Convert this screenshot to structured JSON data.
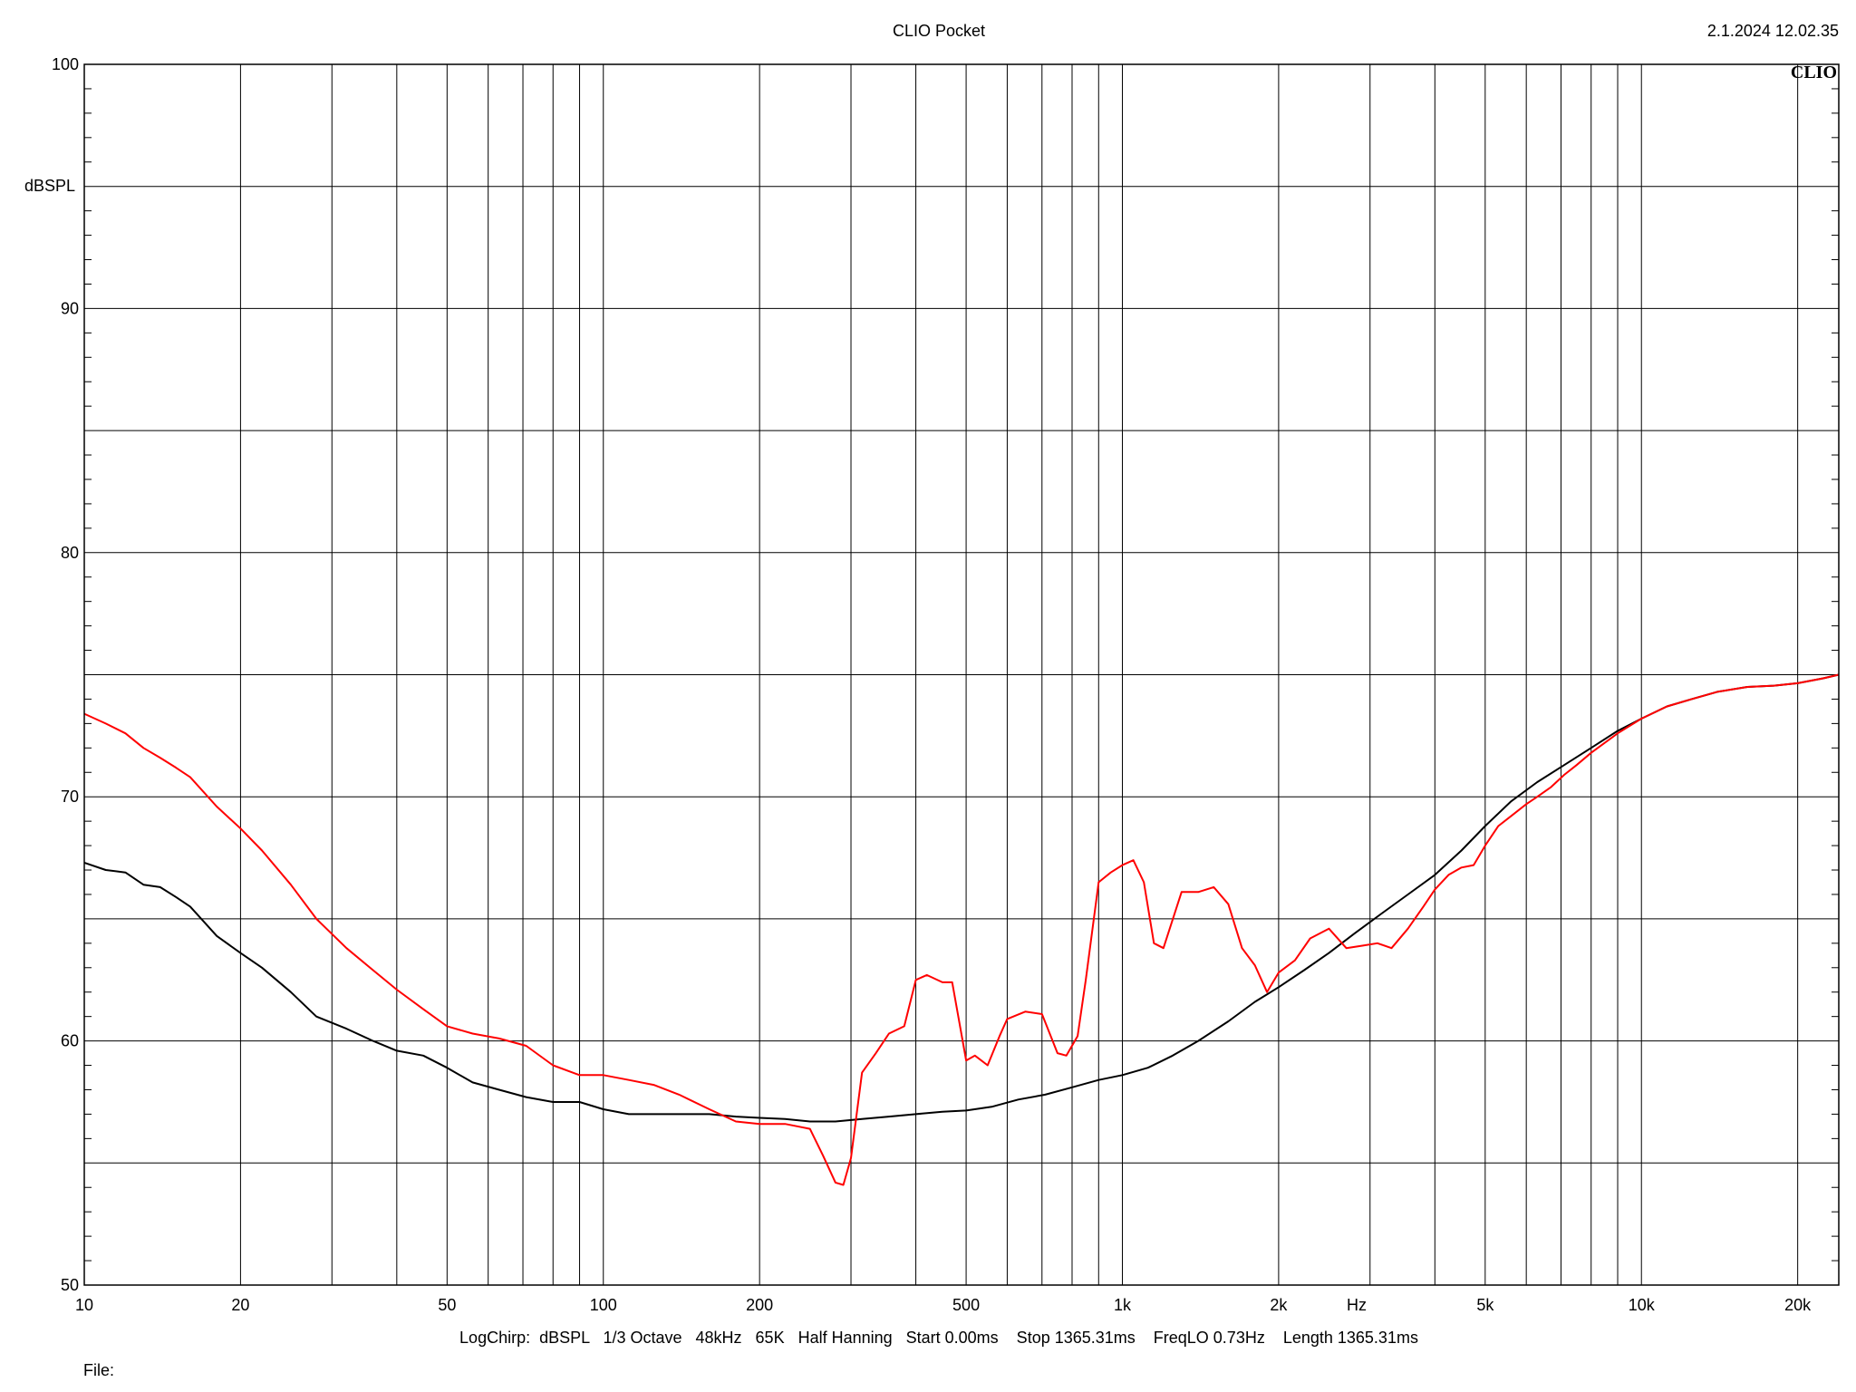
{
  "header": {
    "title": "CLIO Pocket",
    "timestamp": "2.1.2024 12.02.35",
    "logo": "CLIO"
  },
  "footer": {
    "params": "LogChirp:  dBSPL   1/3 Octave   48kHz   65K   Half Hanning   Start 0.00ms    Stop 1365.31ms    FreqLO 0.73Hz    Length 1365.31ms",
    "file_label": "File:"
  },
  "colors": {
    "series_black": "#000000",
    "series_red": "#ff0000",
    "grid": "#000000"
  },
  "chart_data": {
    "type": "line",
    "title": "CLIO Pocket",
    "xlabel": "Hz",
    "ylabel": "dBSPL",
    "x_scale": "log",
    "xlim": [
      10,
      24000
    ],
    "ylim": [
      50,
      100
    ],
    "grid": true,
    "x_ticks": [
      {
        "value": 10,
        "label": "10"
      },
      {
        "value": 20,
        "label": "20"
      },
      {
        "value": 50,
        "label": "50"
      },
      {
        "value": 100,
        "label": "100"
      },
      {
        "value": 200,
        "label": "200"
      },
      {
        "value": 500,
        "label": "500"
      },
      {
        "value": 1000,
        "label": "1k"
      },
      {
        "value": 2000,
        "label": "2k"
      },
      {
        "value": 5000,
        "label": "5k"
      },
      {
        "value": 10000,
        "label": "10k"
      },
      {
        "value": 20000,
        "label": "20k"
      }
    ],
    "y_ticks": [
      {
        "value": 50,
        "label": "50"
      },
      {
        "value": 60,
        "label": "60"
      },
      {
        "value": 70,
        "label": "70"
      },
      {
        "value": 80,
        "label": "80"
      },
      {
        "value": 90,
        "label": "90"
      },
      {
        "value": 100,
        "label": "100"
      }
    ],
    "series": [
      {
        "color": "#000000",
        "x": [
          10,
          11,
          12,
          13,
          14,
          15,
          16,
          18,
          20,
          22,
          25,
          28,
          32,
          36,
          40,
          45,
          50,
          56,
          63,
          71,
          80,
          90,
          100,
          112,
          125,
          140,
          160,
          180,
          200,
          224,
          250,
          280,
          315,
          355,
          400,
          450,
          500,
          560,
          630,
          710,
          800,
          900,
          1000,
          1120,
          1250,
          1400,
          1600,
          1800,
          2000,
          2240,
          2500,
          2800,
          3150,
          3550,
          4000,
          4500,
          5000,
          5600,
          6300,
          7100,
          8000,
          9000,
          10000,
          11200,
          12500,
          14000,
          16000,
          18000,
          20000,
          22400,
          24000
        ],
        "y": [
          67.3,
          67.0,
          66.9,
          66.4,
          66.3,
          65.9,
          65.5,
          64.3,
          63.6,
          63.0,
          62.0,
          61.0,
          60.5,
          60.0,
          59.6,
          59.4,
          58.9,
          58.3,
          58.0,
          57.7,
          57.5,
          57.5,
          57.2,
          57.0,
          57.0,
          57.0,
          57.0,
          56.9,
          56.85,
          56.8,
          56.7,
          56.7,
          56.8,
          56.9,
          57.0,
          57.1,
          57.15,
          57.3,
          57.6,
          57.8,
          58.1,
          58.4,
          58.6,
          58.9,
          59.4,
          60.0,
          60.8,
          61.6,
          62.2,
          62.9,
          63.6,
          64.4,
          65.2,
          66.0,
          66.8,
          67.8,
          68.8,
          69.8,
          70.6,
          71.3,
          72.0,
          72.7,
          73.2,
          73.7,
          74.0,
          74.3,
          74.5,
          74.55,
          74.65,
          74.85,
          75.0
        ]
      },
      {
        "color": "#ff0000",
        "x": [
          10,
          11,
          12,
          13,
          14,
          15,
          16,
          18,
          20,
          22,
          25,
          28,
          32,
          36,
          40,
          45,
          50,
          56,
          63,
          71,
          80,
          90,
          100,
          112,
          125,
          140,
          160,
          180,
          200,
          224,
          250,
          265,
          280,
          290,
          300,
          315,
          335,
          355,
          380,
          400,
          420,
          450,
          470,
          500,
          520,
          550,
          580,
          600,
          650,
          700,
          750,
          780,
          820,
          850,
          900,
          950,
          1000,
          1050,
          1100,
          1150,
          1200,
          1300,
          1400,
          1500,
          1600,
          1700,
          1800,
          1900,
          2000,
          2150,
          2300,
          2500,
          2700,
          2900,
          3100,
          3300,
          3550,
          3800,
          4000,
          4250,
          4500,
          4750,
          5000,
          5300,
          5600,
          6000,
          6300,
          6700,
          7100,
          7500,
          8000,
          9000,
          10000,
          11200,
          12500,
          14000,
          16000,
          18000,
          20000,
          22400,
          24000
        ],
        "y": [
          73.4,
          73.0,
          72.6,
          72.0,
          71.6,
          71.2,
          70.8,
          69.6,
          68.7,
          67.8,
          66.4,
          65.0,
          63.8,
          62.9,
          62.1,
          61.3,
          60.6,
          60.3,
          60.1,
          59.8,
          59.0,
          58.6,
          58.6,
          58.4,
          58.2,
          57.8,
          57.2,
          56.7,
          56.6,
          56.6,
          56.4,
          55.3,
          54.2,
          54.1,
          55.2,
          58.7,
          59.5,
          60.3,
          60.6,
          62.5,
          62.7,
          62.4,
          62.4,
          59.2,
          59.4,
          59.0,
          60.2,
          60.9,
          61.2,
          61.1,
          59.5,
          59.4,
          60.2,
          62.5,
          66.5,
          66.9,
          67.2,
          67.4,
          66.5,
          64.0,
          63.8,
          66.1,
          66.1,
          66.3,
          65.6,
          63.8,
          63.1,
          62.0,
          62.8,
          63.3,
          64.2,
          64.6,
          63.8,
          63.9,
          64.0,
          63.8,
          64.6,
          65.5,
          66.2,
          66.8,
          67.1,
          67.2,
          68.0,
          68.8,
          69.2,
          69.7,
          70.0,
          70.4,
          70.9,
          71.3,
          71.8,
          72.6,
          73.2,
          73.7,
          74.0,
          74.3,
          74.5,
          74.55,
          74.65,
          74.85,
          75.0
        ]
      }
    ]
  }
}
